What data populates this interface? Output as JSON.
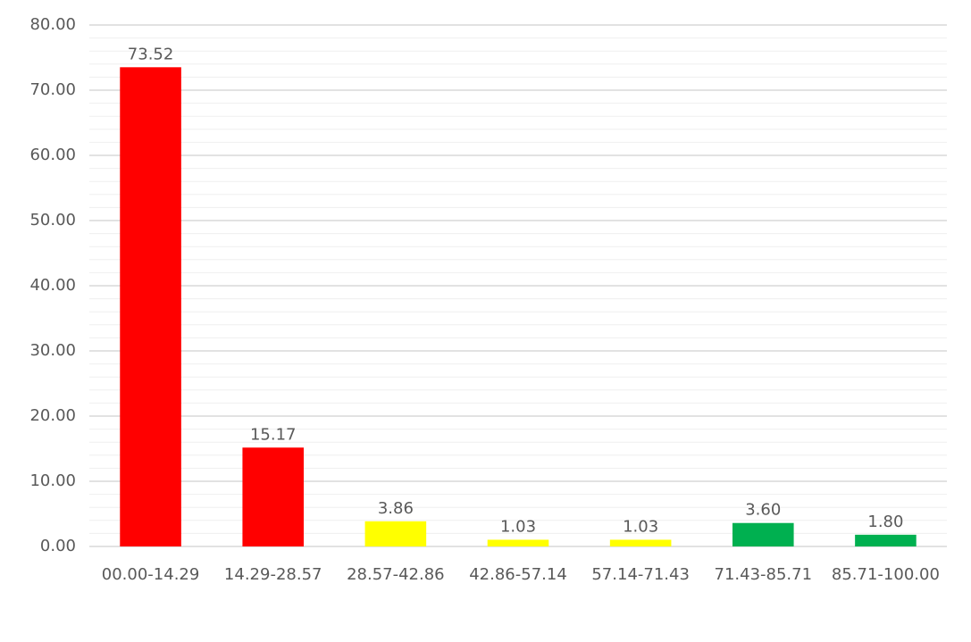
{
  "chart_data": {
    "type": "bar",
    "categories": [
      "00.00-14.29",
      "14.29-28.57",
      "28.57-42.86",
      "42.86-57.14",
      "57.14-71.43",
      "71.43-85.71",
      "85.71-100.00"
    ],
    "values": [
      73.52,
      15.17,
      3.86,
      1.03,
      1.03,
      3.6,
      1.8
    ],
    "value_labels": [
      "73.52",
      "15.17",
      "3.86",
      "1.03",
      "1.03",
      "3.60",
      "1.80"
    ],
    "colors": [
      "#ff0000",
      "#ff0000",
      "#ffff00",
      "#ffff00",
      "#ffff00",
      "#00b050",
      "#00b050"
    ],
    "ylim": [
      0,
      80
    ],
    "yticks": [
      {
        "value": 0,
        "label": "0.00"
      },
      {
        "value": 10,
        "label": "10.00"
      },
      {
        "value": 20,
        "label": "20.00"
      },
      {
        "value": 30,
        "label": "30.00"
      },
      {
        "value": 40,
        "label": "40.00"
      },
      {
        "value": 50,
        "label": "50.00"
      },
      {
        "value": 60,
        "label": "60.00"
      },
      {
        "value": 70,
        "label": "70.00"
      },
      {
        "value": 80,
        "label": "80.00"
      }
    ],
    "minor_yticks": [
      2,
      4,
      6,
      8,
      12,
      14,
      16,
      18,
      22,
      24,
      26,
      28,
      32,
      34,
      36,
      38,
      42,
      44,
      46,
      48,
      52,
      54,
      56,
      58,
      62,
      64,
      66,
      68,
      72,
      74,
      76,
      78
    ],
    "grid": true
  }
}
